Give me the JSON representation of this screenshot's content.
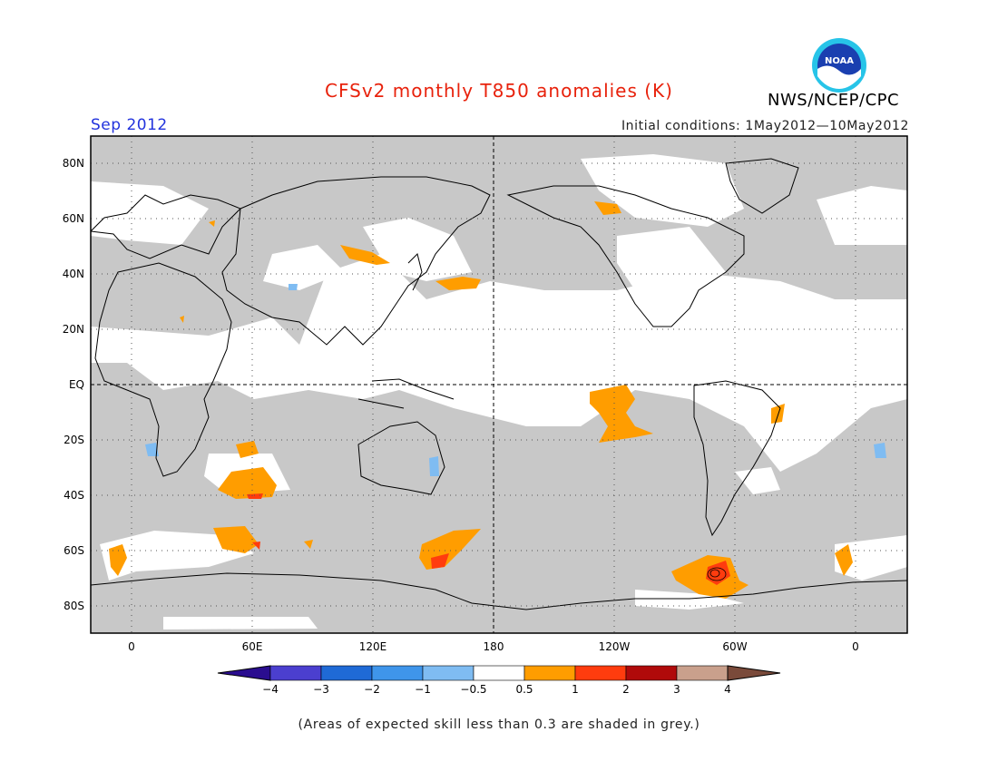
{
  "title": "CFSv2 monthly T850 anomalies (K)",
  "agency": "NWS/NCEP/CPC",
  "logo_text": "NOAA",
  "valid_month": "Sep 2012",
  "initial_conditions": "Initial conditions: 1May2012—10May2012",
  "lat_labels": [
    "80N",
    "60N",
    "40N",
    "20N",
    "EQ",
    "20S",
    "40S",
    "60S",
    "80S"
  ],
  "lon_labels": [
    "0",
    "60E",
    "120E",
    "180",
    "120W",
    "60W",
    "0"
  ],
  "colorbar": {
    "labels": [
      "−4",
      "−3",
      "−2",
      "−1",
      "−0.5",
      "0.5",
      "1",
      "2",
      "3",
      "4"
    ],
    "colors": [
      "#2a0d8f",
      "#4b3fcf",
      "#1f6ad6",
      "#3f95ea",
      "#7fbcf2",
      "#ffffff",
      "#ff9d00",
      "#ff3c0e",
      "#b00a0a",
      "#c9a08c",
      "#7a4a3a"
    ]
  },
  "colors": {
    "grey_mask": "#c8c8c8",
    "orange": "#ff9d00",
    "red": "#ff3c0e",
    "blue": "#7fbcf2",
    "title": "#e8220c",
    "month": "#2233dd"
  },
  "footnote": "(Areas of expected skill less than 0.3 are shaded in grey.)"
}
